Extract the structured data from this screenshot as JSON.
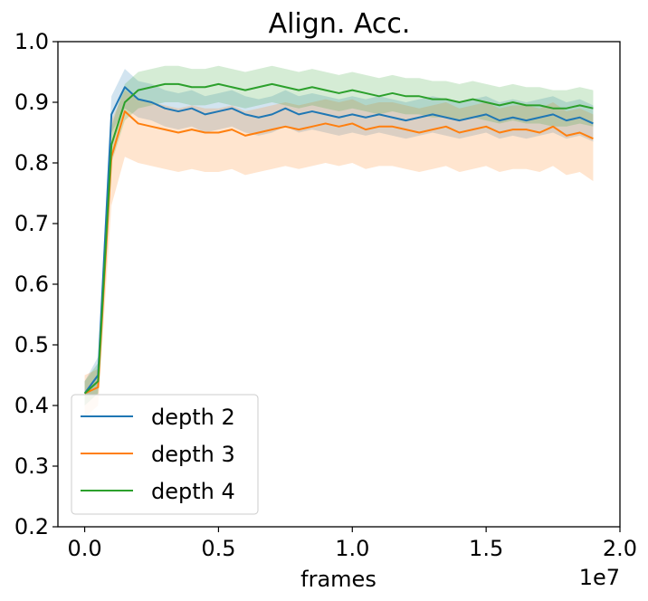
{
  "chart_data": {
    "type": "line",
    "title": "Align. Acc.",
    "xlabel": "frames",
    "x_offset_text": "1e7",
    "ylabel": "",
    "xlim": [
      -0.1,
      2.0
    ],
    "ylim": [
      0.2,
      1.0
    ],
    "x_ticks": [
      0.0,
      0.5,
      1.0,
      1.5,
      2.0
    ],
    "x_tick_labels": [
      "0.0",
      "0.5",
      "1.0",
      "1.5",
      "2.0"
    ],
    "y_ticks": [
      0.2,
      0.3,
      0.4,
      0.5,
      0.6,
      0.7,
      0.8,
      0.9,
      1.0
    ],
    "y_tick_labels": [
      "0.2",
      "0.3",
      "0.4",
      "0.5",
      "0.6",
      "0.7",
      "0.8",
      "0.9",
      "1.0"
    ],
    "grid": false,
    "legend_position": "lower-left",
    "x": [
      0.0,
      0.05,
      0.1,
      0.15,
      0.2,
      0.25,
      0.3,
      0.35,
      0.4,
      0.45,
      0.5,
      0.55,
      0.6,
      0.65,
      0.7,
      0.75,
      0.8,
      0.85,
      0.9,
      0.95,
      1.0,
      1.05,
      1.1,
      1.15,
      1.2,
      1.25,
      1.3,
      1.35,
      1.4,
      1.45,
      1.5,
      1.55,
      1.6,
      1.65,
      1.7,
      1.75,
      1.8,
      1.85,
      1.9
    ],
    "series": [
      {
        "name": "depth 2",
        "color": "#1f77b4",
        "values": [
          0.42,
          0.45,
          0.88,
          0.925,
          0.905,
          0.9,
          0.89,
          0.885,
          0.89,
          0.88,
          0.885,
          0.89,
          0.88,
          0.875,
          0.88,
          0.89,
          0.88,
          0.885,
          0.88,
          0.875,
          0.88,
          0.875,
          0.88,
          0.875,
          0.87,
          0.875,
          0.88,
          0.875,
          0.87,
          0.875,
          0.88,
          0.87,
          0.875,
          0.87,
          0.875,
          0.88,
          0.87,
          0.875,
          0.865
        ],
        "lower": [
          0.4,
          0.42,
          0.85,
          0.89,
          0.875,
          0.87,
          0.86,
          0.855,
          0.86,
          0.85,
          0.855,
          0.86,
          0.85,
          0.845,
          0.85,
          0.86,
          0.85,
          0.855,
          0.85,
          0.845,
          0.85,
          0.845,
          0.85,
          0.845,
          0.84,
          0.845,
          0.85,
          0.845,
          0.84,
          0.845,
          0.85,
          0.84,
          0.845,
          0.84,
          0.845,
          0.85,
          0.84,
          0.845,
          0.835
        ],
        "upper": [
          0.44,
          0.48,
          0.91,
          0.955,
          0.935,
          0.93,
          0.92,
          0.915,
          0.92,
          0.91,
          0.915,
          0.92,
          0.91,
          0.905,
          0.91,
          0.92,
          0.91,
          0.915,
          0.91,
          0.905,
          0.91,
          0.905,
          0.91,
          0.905,
          0.9,
          0.905,
          0.91,
          0.905,
          0.9,
          0.905,
          0.91,
          0.9,
          0.905,
          0.9,
          0.905,
          0.91,
          0.9,
          0.905,
          0.895
        ]
      },
      {
        "name": "depth 3",
        "color": "#ff7f0e",
        "values": [
          0.42,
          0.43,
          0.81,
          0.885,
          0.865,
          0.86,
          0.855,
          0.85,
          0.855,
          0.85,
          0.85,
          0.855,
          0.845,
          0.85,
          0.855,
          0.86,
          0.855,
          0.86,
          0.865,
          0.86,
          0.865,
          0.855,
          0.86,
          0.86,
          0.855,
          0.85,
          0.855,
          0.86,
          0.85,
          0.855,
          0.86,
          0.85,
          0.855,
          0.855,
          0.85,
          0.86,
          0.845,
          0.85,
          0.84
        ],
        "lower": [
          0.38,
          0.4,
          0.73,
          0.81,
          0.8,
          0.795,
          0.79,
          0.785,
          0.79,
          0.785,
          0.785,
          0.79,
          0.78,
          0.785,
          0.79,
          0.795,
          0.79,
          0.795,
          0.8,
          0.795,
          0.8,
          0.79,
          0.795,
          0.795,
          0.79,
          0.785,
          0.79,
          0.795,
          0.785,
          0.79,
          0.795,
          0.785,
          0.79,
          0.79,
          0.785,
          0.795,
          0.78,
          0.785,
          0.77
        ],
        "upper": [
          0.45,
          0.46,
          0.87,
          0.92,
          0.905,
          0.9,
          0.895,
          0.89,
          0.895,
          0.89,
          0.89,
          0.895,
          0.885,
          0.89,
          0.895,
          0.9,
          0.895,
          0.9,
          0.905,
          0.9,
          0.905,
          0.895,
          0.9,
          0.9,
          0.895,
          0.89,
          0.895,
          0.9,
          0.89,
          0.895,
          0.9,
          0.89,
          0.895,
          0.895,
          0.89,
          0.9,
          0.885,
          0.89,
          0.88
        ]
      },
      {
        "name": "depth 4",
        "color": "#2ca02c",
        "values": [
          0.42,
          0.44,
          0.83,
          0.9,
          0.92,
          0.925,
          0.93,
          0.93,
          0.925,
          0.925,
          0.93,
          0.925,
          0.92,
          0.925,
          0.93,
          0.925,
          0.92,
          0.925,
          0.92,
          0.915,
          0.92,
          0.915,
          0.91,
          0.915,
          0.91,
          0.91,
          0.905,
          0.905,
          0.9,
          0.905,
          0.9,
          0.895,
          0.9,
          0.895,
          0.895,
          0.89,
          0.89,
          0.895,
          0.89
        ],
        "lower": [
          0.4,
          0.42,
          0.8,
          0.87,
          0.89,
          0.895,
          0.9,
          0.9,
          0.895,
          0.895,
          0.9,
          0.895,
          0.89,
          0.895,
          0.9,
          0.895,
          0.89,
          0.895,
          0.89,
          0.885,
          0.89,
          0.885,
          0.88,
          0.885,
          0.88,
          0.88,
          0.875,
          0.875,
          0.87,
          0.875,
          0.87,
          0.865,
          0.87,
          0.865,
          0.865,
          0.86,
          0.86,
          0.865,
          0.86
        ],
        "upper": [
          0.44,
          0.47,
          0.86,
          0.93,
          0.95,
          0.955,
          0.96,
          0.96,
          0.955,
          0.955,
          0.96,
          0.955,
          0.95,
          0.955,
          0.96,
          0.955,
          0.95,
          0.955,
          0.95,
          0.945,
          0.95,
          0.945,
          0.94,
          0.945,
          0.94,
          0.94,
          0.935,
          0.935,
          0.93,
          0.935,
          0.93,
          0.925,
          0.93,
          0.925,
          0.925,
          0.92,
          0.92,
          0.925,
          0.92
        ]
      }
    ]
  }
}
